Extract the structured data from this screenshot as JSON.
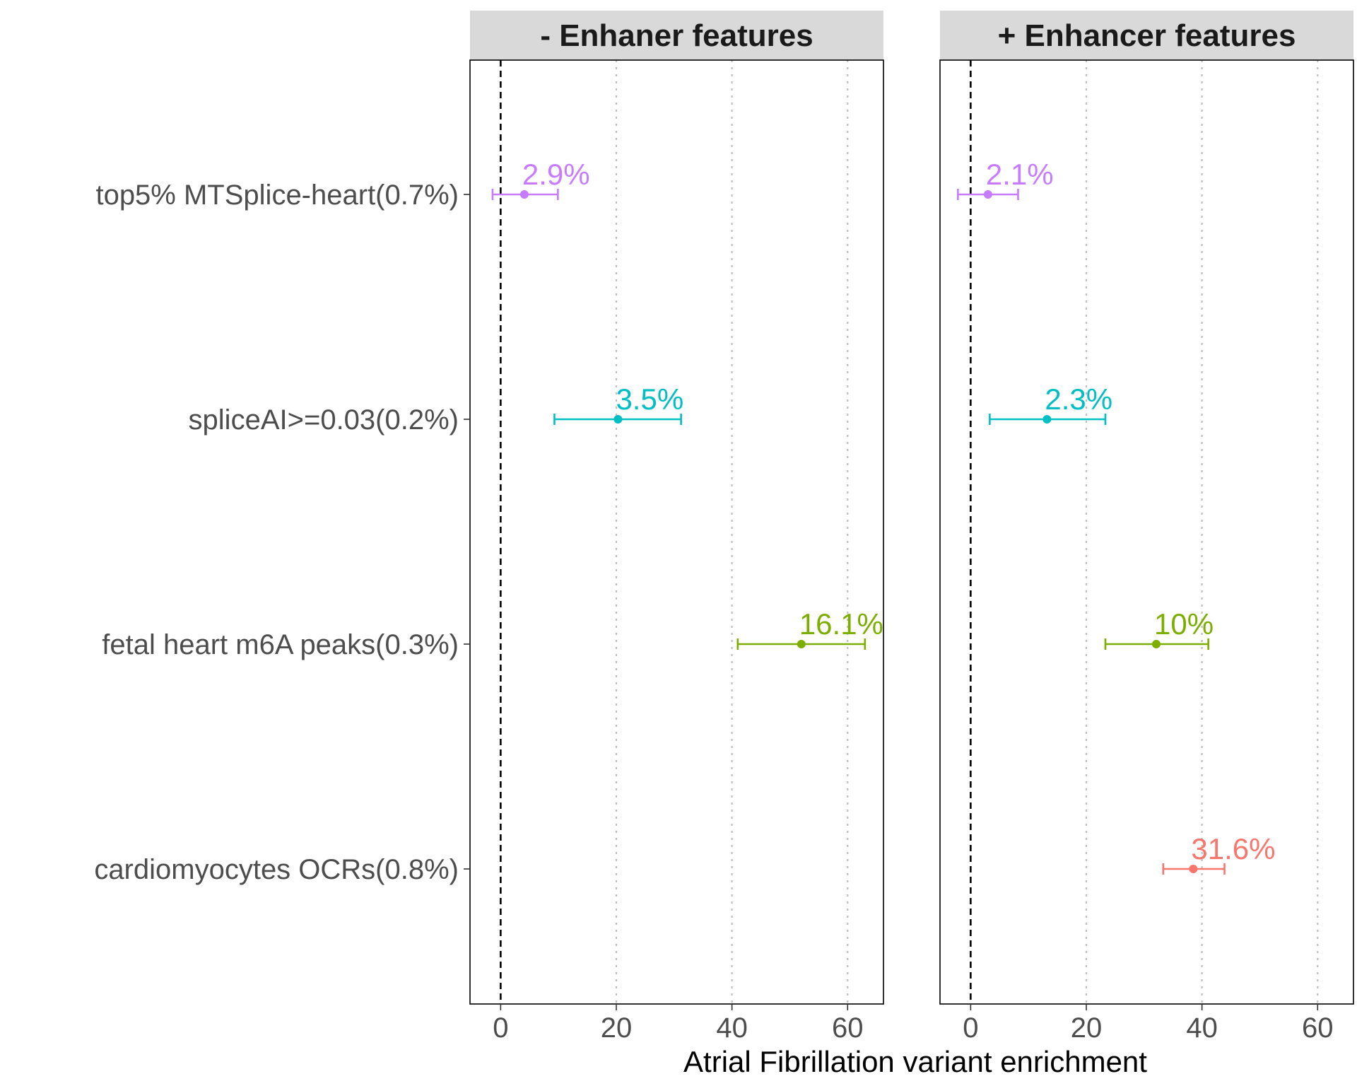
{
  "chart_data": {
    "type": "forest",
    "xlabel": "Atrial Fibrillation variant enrichment",
    "xlim": [
      -5.3,
      66.2
    ],
    "x_ticks": [
      0,
      20,
      40,
      60
    ],
    "x_tick_labels": [
      "0",
      "20",
      "40",
      "60"
    ],
    "reference_line": 0,
    "categories": [
      "top5% MTSplice-heart(0.7%)",
      "spliceAI>=0.03(0.2%)",
      "fetal heart m6A peaks(0.3%)",
      "cardiomyocytes OCRs(0.8%)"
    ],
    "series_colors": [
      "#C77CFF",
      "#00BFC4",
      "#7CAE00",
      "#F8766D"
    ],
    "panels": [
      {
        "title": "- Enhaner features",
        "points": [
          {
            "category": 0,
            "estimate": 4.1,
            "lower": -1.4,
            "upper": 9.9,
            "label": "2.9%"
          },
          {
            "category": 1,
            "estimate": 20.3,
            "lower": 9.3,
            "upper": 31.2,
            "label": "3.5%"
          },
          {
            "category": 2,
            "estimate": 52.0,
            "lower": 41.0,
            "upper": 63.0,
            "label": "16.1%"
          }
        ]
      },
      {
        "title": "+ Enhancer features",
        "points": [
          {
            "category": 0,
            "estimate": 3.0,
            "lower": -2.2,
            "upper": 8.2,
            "label": "2.1%"
          },
          {
            "category": 1,
            "estimate": 13.2,
            "lower": 3.3,
            "upper": 23.3,
            "label": "2.3%"
          },
          {
            "category": 2,
            "estimate": 32.1,
            "lower": 23.3,
            "upper": 41.1,
            "label": "10%"
          },
          {
            "category": 3,
            "estimate": 38.5,
            "lower": 33.3,
            "upper": 43.9,
            "label": "31.6%"
          }
        ]
      }
    ]
  }
}
